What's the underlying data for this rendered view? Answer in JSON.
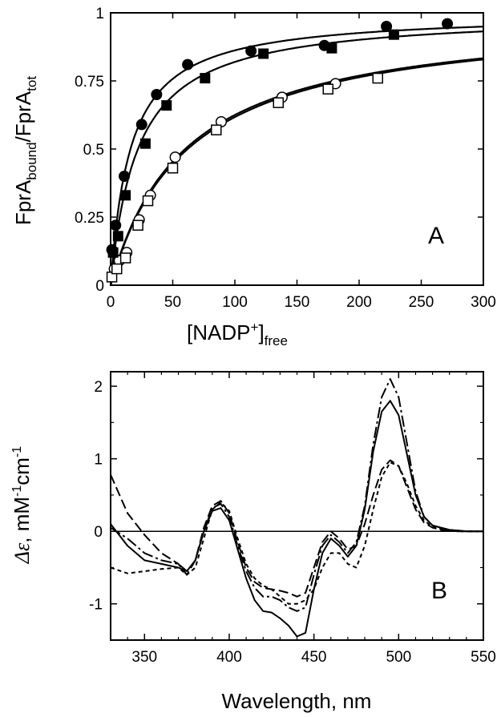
{
  "chart_data": [
    {
      "panel": "A",
      "type": "scatter",
      "panel_label": "A",
      "xlabel": {
        "main": "[NADP",
        "sup": "+",
        "close": "]",
        "sub": "free"
      },
      "ylabel": {
        "p1": "FprA",
        "s1": "bound",
        "p2": "/FprA",
        "s2": "tot"
      },
      "xlim": [
        0,
        300
      ],
      "ylim": [
        0,
        1
      ],
      "xticks": [
        0,
        50,
        100,
        150,
        200,
        250,
        300
      ],
      "yticks": [
        0,
        0.25,
        0.5,
        0.75,
        1
      ],
      "ytick_labels": [
        "0",
        "0.25",
        "0.5",
        "0.75",
        "1"
      ],
      "grid": false,
      "series": [
        {
          "marker": "filled-circle",
          "x": [
            1,
            4,
            11,
            25,
            37,
            62,
            113,
            172,
            222,
            271
          ],
          "y": [
            0.13,
            0.22,
            0.4,
            0.59,
            0.7,
            0.81,
            0.86,
            0.88,
            0.95,
            0.96
          ],
          "fit_kd": 16
        },
        {
          "marker": "filled-square",
          "x": [
            2,
            6,
            12,
            28,
            45,
            76,
            123,
            178,
            228
          ],
          "y": [
            0.12,
            0.18,
            0.33,
            0.52,
            0.66,
            0.76,
            0.85,
            0.87,
            0.92
          ],
          "fit_kd": 22
        },
        {
          "marker": "open-circle",
          "x": [
            3,
            7,
            13,
            23,
            32,
            52,
            89,
            138,
            181
          ],
          "y": [
            0.06,
            0.09,
            0.12,
            0.24,
            0.33,
            0.47,
            0.6,
            0.69,
            0.74
          ],
          "fit_kd": 60
        },
        {
          "marker": "open-square",
          "x": [
            1,
            5,
            12,
            22,
            30,
            50,
            85,
            135,
            175,
            215
          ],
          "y": [
            0.03,
            0.06,
            0.1,
            0.22,
            0.31,
            0.43,
            0.57,
            0.67,
            0.72,
            0.76
          ],
          "fit_kd": 62
        }
      ]
    },
    {
      "panel": "B",
      "type": "line",
      "panel_label": "B",
      "xlabel": "Wavelength, nm",
      "ylabel": {
        "symbol": "Δε",
        "unit_a": ", mM",
        "sup_a": "-1",
        "unit_b": "cm",
        "sup_b": "-1"
      },
      "xlim": [
        330,
        550
      ],
      "ylim": [
        -1.5,
        2.2
      ],
      "xticks": [
        350,
        400,
        450,
        500,
        550
      ],
      "yticks": [
        -1,
        0,
        1,
        2
      ],
      "grid": false,
      "zero_line": true,
      "series": [
        {
          "style": "solid",
          "x": [
            330,
            340,
            350,
            360,
            370,
            375,
            380,
            385,
            390,
            395,
            400,
            405,
            410,
            415,
            420,
            425,
            430,
            435,
            440,
            445,
            450,
            455,
            460,
            465,
            470,
            475,
            480,
            485,
            490,
            495,
            500,
            505,
            510,
            515,
            520,
            525,
            530,
            535,
            540,
            545,
            550
          ],
          "y": [
            0.1,
            -0.2,
            -0.4,
            -0.45,
            -0.5,
            -0.55,
            -0.4,
            0.0,
            0.28,
            0.32,
            0.15,
            -0.25,
            -0.65,
            -0.95,
            -1.1,
            -1.12,
            -1.2,
            -1.3,
            -1.45,
            -1.4,
            -0.8,
            -0.3,
            -0.1,
            -0.2,
            -0.35,
            -0.2,
            0.3,
            1.1,
            1.65,
            1.8,
            1.6,
            1.05,
            0.5,
            0.2,
            0.08,
            0.05,
            0.02,
            0.01,
            0.0,
            0.0,
            0.0
          ]
        },
        {
          "style": "dash-dot",
          "x": [
            330,
            340,
            350,
            360,
            370,
            375,
            380,
            385,
            390,
            395,
            400,
            405,
            410,
            415,
            420,
            425,
            430,
            435,
            440,
            445,
            450,
            455,
            460,
            465,
            470,
            475,
            480,
            485,
            490,
            495,
            500,
            505,
            510,
            515,
            520,
            525,
            530,
            535,
            540,
            545,
            550
          ],
          "y": [
            0.05,
            -0.1,
            -0.3,
            -0.4,
            -0.45,
            -0.55,
            -0.4,
            0.0,
            0.32,
            0.38,
            0.2,
            -0.2,
            -0.55,
            -0.78,
            -0.9,
            -0.9,
            -0.95,
            -1.05,
            -1.1,
            -1.05,
            -0.6,
            -0.2,
            -0.05,
            -0.15,
            -0.3,
            -0.15,
            0.35,
            1.2,
            1.85,
            2.1,
            1.85,
            1.2,
            0.55,
            0.2,
            0.08,
            0.05,
            0.02,
            0.01,
            0.0,
            0.0,
            0.0
          ]
        },
        {
          "style": "long-dash",
          "x": [
            330,
            340,
            350,
            360,
            370,
            375,
            380,
            385,
            390,
            395,
            400,
            405,
            410,
            415,
            420,
            425,
            430,
            435,
            440,
            445,
            450,
            455,
            460,
            465,
            470,
            475,
            480,
            485,
            490,
            495,
            500,
            505,
            510,
            515,
            520,
            525,
            530,
            535,
            540,
            545,
            550
          ],
          "y": [
            0.78,
            0.25,
            -0.05,
            -0.3,
            -0.45,
            -0.6,
            -0.4,
            0.05,
            0.35,
            0.42,
            0.25,
            -0.15,
            -0.5,
            -0.7,
            -0.78,
            -0.8,
            -0.82,
            -0.85,
            -0.9,
            -0.85,
            -0.5,
            -0.15,
            0.0,
            -0.1,
            -0.25,
            -0.2,
            0.1,
            0.5,
            0.85,
            0.98,
            0.9,
            0.6,
            0.3,
            0.12,
            0.05,
            0.02,
            0.01,
            0.0,
            0.0,
            0.0,
            0.0
          ]
        },
        {
          "style": "short-dash",
          "x": [
            330,
            340,
            350,
            360,
            370,
            375,
            380,
            385,
            390,
            395,
            400,
            405,
            410,
            415,
            420,
            425,
            430,
            435,
            440,
            445,
            450,
            455,
            460,
            465,
            470,
            475,
            480,
            485,
            490,
            495,
            500,
            505,
            510,
            515,
            520,
            525,
            530,
            535,
            540,
            545,
            550
          ],
          "y": [
            -0.5,
            -0.58,
            -0.55,
            -0.52,
            -0.5,
            -0.6,
            -0.5,
            -0.1,
            0.3,
            0.4,
            0.28,
            -0.1,
            -0.45,
            -0.65,
            -0.75,
            -0.8,
            -0.9,
            -1.0,
            -1.0,
            -0.95,
            -0.8,
            -0.5,
            -0.3,
            -0.3,
            -0.45,
            -0.5,
            -0.2,
            0.3,
            0.75,
            0.95,
            0.9,
            0.65,
            0.35,
            0.15,
            0.06,
            0.03,
            0.01,
            0.0,
            0.0,
            0.0,
            0.0
          ]
        }
      ]
    }
  ]
}
